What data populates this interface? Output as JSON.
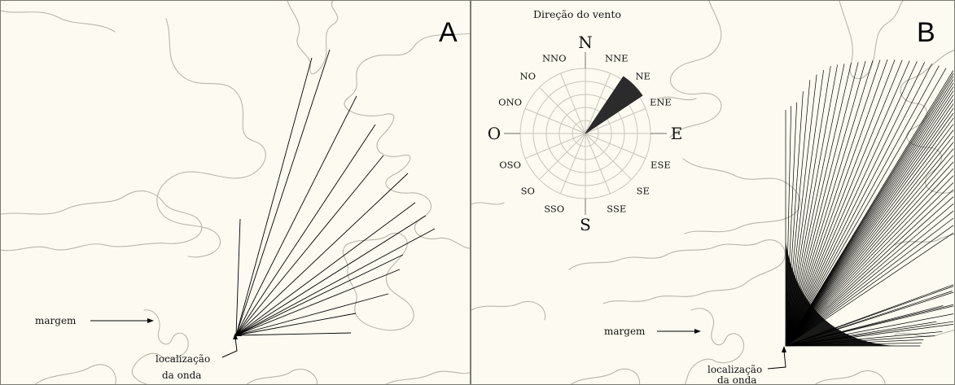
{
  "panels": [
    {
      "id": "A",
      "letter": "A",
      "margin_label": "margem",
      "wave_label_line1": "localização",
      "wave_label_line2": "da onda",
      "fetch_rays": 15
    },
    {
      "id": "B",
      "letter": "B",
      "margin_label": "margem",
      "wave_label_line1": "localização",
      "wave_label_line2": "da onda",
      "fetch_rays": 70
    }
  ],
  "wind_rose": {
    "title": "Direção do vento",
    "directions": [
      "N",
      "NNE",
      "NE",
      "ENE",
      "E",
      "ESE",
      "SE",
      "SSE",
      "S",
      "SSO",
      "SO",
      "OSO",
      "O",
      "ONO",
      "NO",
      "NNO"
    ],
    "highlighted_direction": "NE"
  },
  "colors": {
    "background": "#fdfbf1",
    "shoreline": "#b8b6ab",
    "ray": "#000000",
    "sector_fill": "#2b2b2b",
    "grid": "#c8c6bc"
  }
}
